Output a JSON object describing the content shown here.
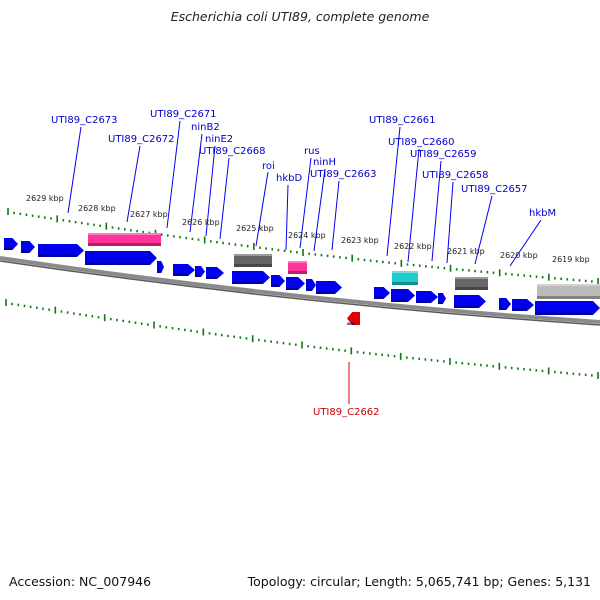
{
  "title": "Escherichia coli UTI89, complete genome",
  "accession": "Accession: NC_007946",
  "summary": "Topology: circular; Length: 5,065,741 bp; Genes: 5,131",
  "colors": {
    "forward_gene": "#0000ee",
    "reverse_gene": "#e00000",
    "pink_feature": "#ff3399",
    "gray_feature": "#666666",
    "light_gray_feature": "#bbbbbb",
    "cyan_feature": "#22cccc",
    "forward_label": "#0000cc",
    "reverse_label": "#cc0000",
    "tick": "#117711",
    "backbone": "#777777"
  },
  "kbp_ticks": [
    "2629 kbp",
    "2628 kbp",
    "2627 kbp",
    "2626 kbp",
    "2625 kbp",
    "2624 kbp",
    "2623 kbp",
    "2622 kbp",
    "2621 kbp",
    "2620 kbp",
    "2619 kbp"
  ],
  "labels": [
    {
      "text": "UTI89_C2673",
      "strand": "forward"
    },
    {
      "text": "UTI89_C2671",
      "strand": "forward"
    },
    {
      "text": "UTI89_C2672",
      "strand": "forward"
    },
    {
      "text": "ninB2",
      "strand": "forward"
    },
    {
      "text": "ninE2",
      "strand": "forward"
    },
    {
      "text": "UTI89_C2668",
      "strand": "forward"
    },
    {
      "text": "roi",
      "strand": "forward"
    },
    {
      "text": "hkbD",
      "strand": "forward"
    },
    {
      "text": "rus",
      "strand": "forward"
    },
    {
      "text": "ninH",
      "strand": "forward"
    },
    {
      "text": "UTI89_C2663",
      "strand": "forward"
    },
    {
      "text": "UTI89_C2661",
      "strand": "forward"
    },
    {
      "text": "UTI89_C2660",
      "strand": "forward"
    },
    {
      "text": "UTI89_C2659",
      "strand": "forward"
    },
    {
      "text": "UTI89_C2658",
      "strand": "forward"
    },
    {
      "text": "UTI89_C2657",
      "strand": "forward"
    },
    {
      "text": "hkbM",
      "strand": "forward"
    },
    {
      "text": "UTI89_C2662",
      "strand": "reverse"
    }
  ]
}
